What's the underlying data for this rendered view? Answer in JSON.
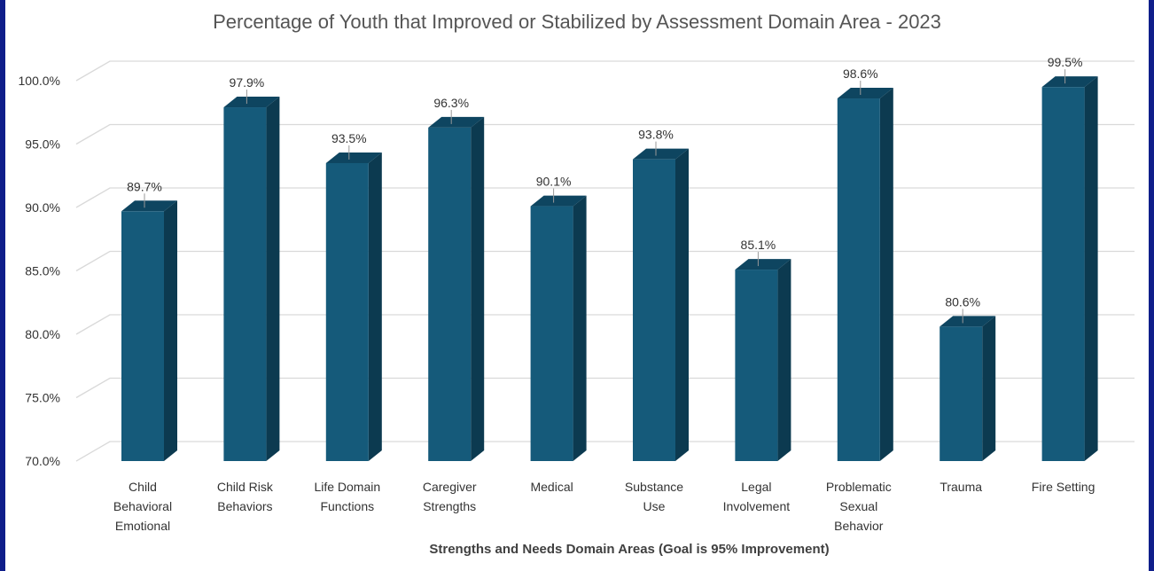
{
  "chart_data": {
    "type": "bar",
    "title": "Percentage of Youth that Improved or Stabilized by Assessment Domain Area - 2023",
    "xlabel": "Strengths and Needs Domain Areas (Goal is 95% Improvement)",
    "ylabel": "",
    "ylim": [
      70,
      100
    ],
    "yticks": [
      "100.0%",
      "95.0%",
      "90.0%",
      "85.0%",
      "80.0%",
      "75.0%",
      "70.0%"
    ],
    "ytick_values": [
      100,
      95,
      90,
      85,
      80,
      75,
      70
    ],
    "grid": true,
    "legend": "none",
    "categories": [
      [
        "Child",
        "Behavioral",
        "Emotional"
      ],
      [
        "Child Risk",
        "Behaviors"
      ],
      [
        "Life Domain",
        "Functions"
      ],
      [
        "Caregiver",
        "Strengths"
      ],
      [
        "Medical"
      ],
      [
        "Substance",
        "Use"
      ],
      [
        "Legal",
        "Involvement"
      ],
      [
        "Problematic",
        "Sexual",
        "Behavior"
      ],
      [
        "Trauma"
      ],
      [
        "Fire Setting"
      ]
    ],
    "values": [
      89.7,
      97.9,
      93.5,
      96.3,
      90.1,
      93.8,
      85.1,
      98.6,
      80.6,
      99.5
    ],
    "data_labels": [
      "89.7%",
      "97.9%",
      "93.5%",
      "96.3%",
      "90.1%",
      "93.8%",
      "85.1%",
      "98.6%",
      "80.6%",
      "99.5%"
    ],
    "colors": {
      "bar_front": "#155a7a",
      "bar_side": "#0c3a50",
      "bar_top": "#0e4560",
      "grid": "#d9d9d9"
    }
  }
}
